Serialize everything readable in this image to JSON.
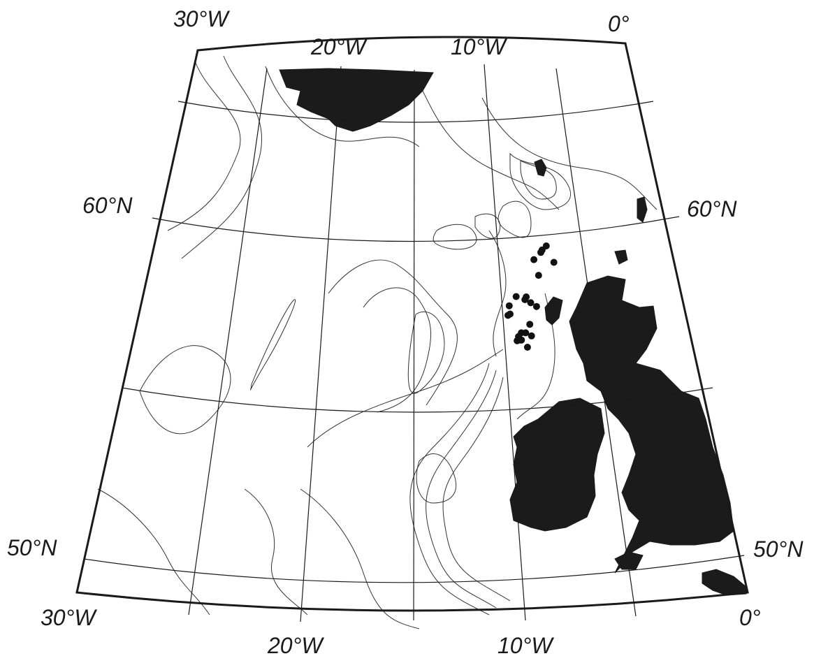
{
  "map": {
    "top_lon_labels": [
      "30°W",
      "20°W",
      "10°W",
      "0°"
    ],
    "bottom_lon_labels": [
      "30°W",
      "20°W",
      "10°W",
      "0°"
    ],
    "left_lat_labels": [
      "60°N",
      "50°N"
    ],
    "right_lat_labels": [
      "60°N",
      "50°N"
    ],
    "colors": {
      "land": "#1b1b1b",
      "lines": "#1a1a1a",
      "contours": "#333333",
      "stations": "#111111"
    },
    "station_count": 23,
    "stations": [
      {
        "lon": -5.7,
        "lat": 59.96
      },
      {
        "lon": -6.0,
        "lat": 59.84
      },
      {
        "lon": -5.2,
        "lat": 59.48
      },
      {
        "lon": -6.6,
        "lat": 59.56
      },
      {
        "lon": -6.3,
        "lat": 59.1
      },
      {
        "lon": -7.9,
        "lat": 58.48
      },
      {
        "lon": -7.2,
        "lat": 58.47
      },
      {
        "lon": -7.3,
        "lat": 58.39
      },
      {
        "lon": -6.9,
        "lat": 58.3
      },
      {
        "lon": -6.5,
        "lat": 58.19
      },
      {
        "lon": -8.4,
        "lat": 58.21
      },
      {
        "lon": -8.5,
        "lat": 57.93
      },
      {
        "lon": -8.35,
        "lat": 57.97
      },
      {
        "lon": -7.0,
        "lat": 57.67
      },
      {
        "lon": -7.3,
        "lat": 57.42
      },
      {
        "lon": -7.6,
        "lat": 57.42
      },
      {
        "lon": -7.8,
        "lat": 57.31
      },
      {
        "lon": -7.6,
        "lat": 57.21
      },
      {
        "lon": -7.9,
        "lat": 57.19
      },
      {
        "lon": -7.7,
        "lat": 57.21
      },
      {
        "lon": -6.9,
        "lat": 57.33
      },
      {
        "lon": -7.2,
        "lat": 57.0
      },
      {
        "lon": -6.1,
        "lat": 59.77
      }
    ]
  }
}
